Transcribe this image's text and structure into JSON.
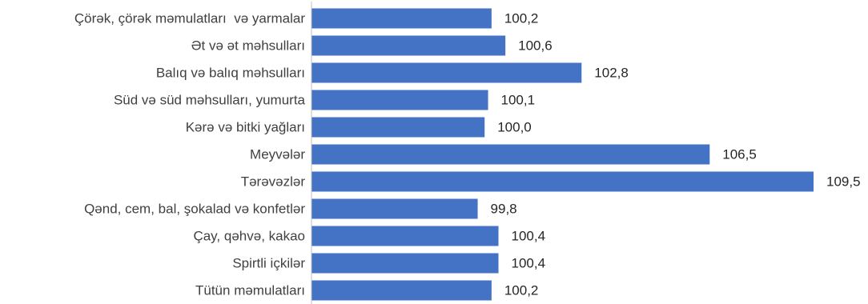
{
  "chart_data": {
    "type": "bar",
    "orientation": "horizontal",
    "categories": [
      "Çörək, çörək məmulatları  və yarmalar",
      "Ət və ət məhsulları",
      "Balıq və balıq məhsulları",
      "Süd və süd məhsulları, yumurta",
      "Kərə və bitki yağları",
      "Meyvələr",
      "Tərəvəzlər",
      "Qənd, cem, bal, şokalad və konfetlər",
      "Çay, qəhvə, kakao",
      "Spirtli içkilər",
      "Tütün məmulatları"
    ],
    "values": [
      100.2,
      100.6,
      102.8,
      100.1,
      100.0,
      106.5,
      109.5,
      99.8,
      100.4,
      100.4,
      100.2
    ],
    "value_labels": [
      "100,2",
      "100,6",
      "102,8",
      "100,1",
      "100,0",
      "106,5",
      "109,5",
      "99,8",
      "100,4",
      "100,4",
      "100,2"
    ],
    "xlim": [
      95,
      109.5
    ],
    "bar_color": "#4472C4",
    "axis_color": "#BFBFBF",
    "grid": false,
    "legend": "none"
  }
}
